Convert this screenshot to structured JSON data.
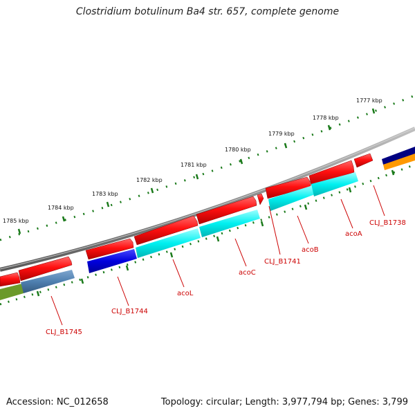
{
  "title": "Clostridium botulinum Ba4 str. 657, complete genome",
  "footer": {
    "accession": "Accession: NC_012658",
    "summary": "Topology: circular; Length: 3,977,794 bp; Genes: 3,799"
  },
  "ruler_labels": [
    {
      "text": "1777 kbp"
    },
    {
      "text": "1778 kbp"
    },
    {
      "text": "1779 kbp"
    },
    {
      "text": "1780 kbp"
    },
    {
      "text": "1781 kbp"
    },
    {
      "text": "1782 kbp"
    },
    {
      "text": "1783 kbp"
    },
    {
      "text": "1784 kbp"
    },
    {
      "text": "1785 kbp"
    }
  ],
  "gene_labels": [
    {
      "text": "CLJ_B1738"
    },
    {
      "text": "acoA"
    },
    {
      "text": "acoB"
    },
    {
      "text": "CLJ_B1741"
    },
    {
      "text": "acoC"
    },
    {
      "text": "acoL"
    },
    {
      "text": "CLJ_B1744"
    },
    {
      "text": "CLJ_B1745"
    }
  ],
  "colors": {
    "backbone": "#808080",
    "cds_strand": "#ff1010",
    "feature_cyan": "#00ffff",
    "feature_blue": "#0000dd",
    "feature_steel": "#4f80b0",
    "feature_olive": "#6b9a2a",
    "feature_navy": "#000080",
    "feature_orange": "#ff9900",
    "tick": "#1a7a1a",
    "label": "#cc0000"
  }
}
